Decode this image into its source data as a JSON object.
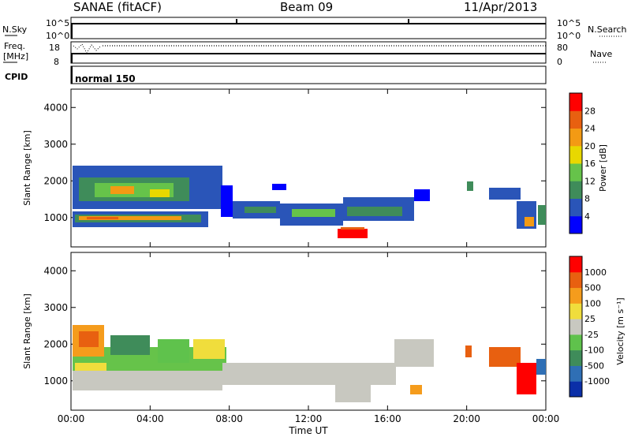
{
  "header": {
    "station": "SANAE (fitACF)",
    "beam": "Beam 09",
    "date": "11/Apr/2013"
  },
  "noise_panel": {
    "label_left": "N.Sky",
    "label_right": "N.Search",
    "tick_top": "10^5",
    "tick_bottom": "10^0",
    "tick_top_right": "10^5",
    "tick_bottom_right": "10^0"
  },
  "freq_panel": {
    "label_left_line1": "Freq.",
    "label_left_line2": "[MHz]",
    "label_right": "Nave",
    "left_ticks": [
      "18",
      "8"
    ],
    "right_ticks": [
      "80",
      "0"
    ]
  },
  "cpid_panel": {
    "label": "CPID",
    "mode": "normal 150"
  },
  "chart_data": [
    {
      "type": "heatmap",
      "name": "Power",
      "ylabel": "Slant Range [km]",
      "ylim": [
        200,
        4500
      ],
      "yticks": [
        "1000",
        "2000",
        "3000",
        "4000"
      ],
      "colorbar_label": "Power [dB]",
      "colorbar_ticks": [
        "4",
        "8",
        "12",
        "16",
        "20",
        "24",
        "28"
      ],
      "colors": [
        "#0000ff",
        "#2a55b8",
        "#3f8c5a",
        "#66c34a",
        "#e8d800",
        "#f39a14",
        "#e86010",
        "#ff0000"
      ]
    },
    {
      "type": "heatmap",
      "name": "Velocity",
      "ylabel": "Slant Range [km]",
      "ylim": [
        200,
        4500
      ],
      "yticks": [
        "1000",
        "2000",
        "3000",
        "4000"
      ],
      "xlabel": "Time UT",
      "xticks": [
        "00:00",
        "04:00",
        "08:00",
        "12:00",
        "16:00",
        "20:00",
        "00:00"
      ],
      "colorbar_label": "Velocity [m s⁻¹]",
      "colorbar_ticks": [
        "1000",
        "500",
        "100",
        "25",
        "-25",
        "-100",
        "-500",
        "-1000"
      ],
      "colors": [
        "#0b2fa8",
        "#2f6fb5",
        "#3f8c5a",
        "#5fc24c",
        "#c8c8c0",
        "#f0dd3c",
        "#f59c1c",
        "#e86010",
        "#ff0000"
      ]
    }
  ]
}
